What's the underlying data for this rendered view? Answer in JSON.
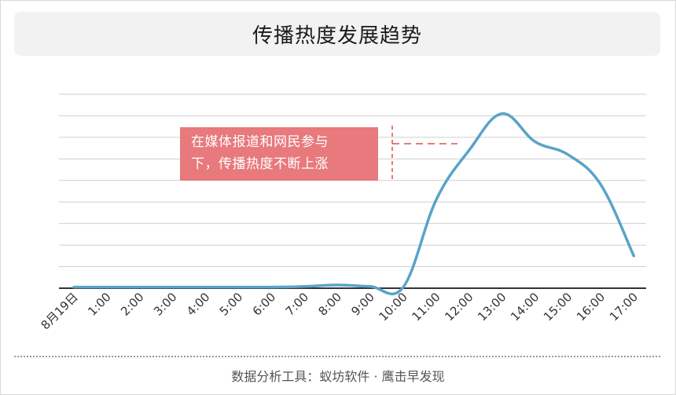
{
  "title": "传播热度发展趋势",
  "footer": "数据分析工具：蚁坊软件 · 鹰击早发现",
  "annotation": {
    "line1": "在媒体报道和网民参与",
    "line2": "下，传播热度不断上涨"
  },
  "colors": {
    "line": "#5aa3c8",
    "annotation_bg": "#e8797c",
    "annotation_marker": "#d9534f",
    "grid": "#cfcfcf",
    "axis": "#333333"
  },
  "chart_data": {
    "type": "line",
    "title": "传播热度发展趋势",
    "xlabel": "",
    "ylabel": "",
    "categories": [
      "8月19日",
      "1:00",
      "2:00",
      "3:00",
      "4:00",
      "5:00",
      "6:00",
      "7:00",
      "8:00",
      "9:00",
      "10:00",
      "11:00",
      "12:00",
      "13:00",
      "14:00",
      "15:00",
      "16:00",
      "17:00"
    ],
    "values": [
      0.5,
      0.5,
      0.5,
      0.5,
      0.5,
      0.5,
      0.5,
      0.8,
      1.5,
      0.8,
      0.5,
      41,
      64,
      81,
      68,
      62,
      48,
      15
    ],
    "ylim": [
      0,
      90
    ],
    "grid": true,
    "legend": "none"
  }
}
